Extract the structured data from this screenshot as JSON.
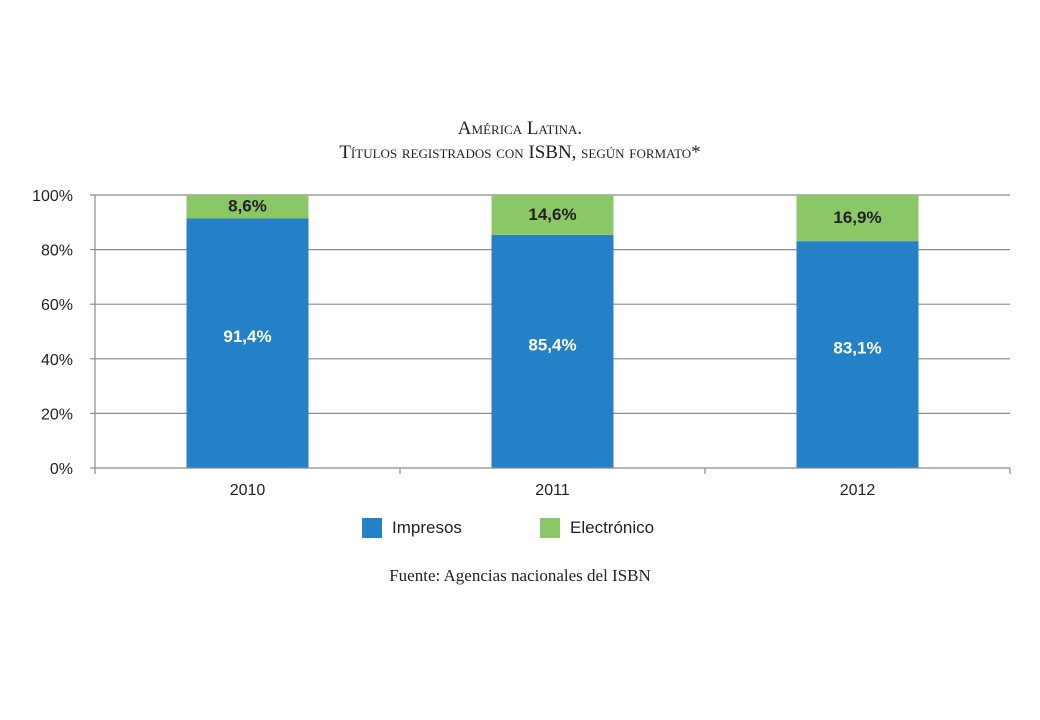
{
  "chart_data": {
    "type": "bar",
    "stacked": true,
    "title": "América Latina.",
    "subtitle": "Títulos registrados con ISBN, según formato*",
    "categories": [
      "2010",
      "2011",
      "2012"
    ],
    "series": [
      {
        "name": "Impresos",
        "color": "#2481c7",
        "values": [
          91.4,
          85.4,
          83.1
        ],
        "labels": [
          "91,4%",
          "85,4%",
          "83,1%"
        ],
        "label_color": "#ffffff"
      },
      {
        "name": "Electrónico",
        "color": "#8ac865",
        "values": [
          8.6,
          14.6,
          16.9
        ],
        "labels": [
          "8,6%",
          "14,6%",
          "16,9%"
        ],
        "label_color": "#231f20"
      }
    ],
    "ylim": [
      0,
      100
    ],
    "yticks": [
      0,
      20,
      40,
      60,
      80,
      100
    ],
    "ytick_labels": [
      "0%",
      "20%",
      "40%",
      "60%",
      "80%",
      "100%"
    ],
    "xlabel": "",
    "ylabel": "",
    "grid": true,
    "legend_position": "bottom",
    "source": "Fuente: Agencias nacionales del ISBN"
  }
}
